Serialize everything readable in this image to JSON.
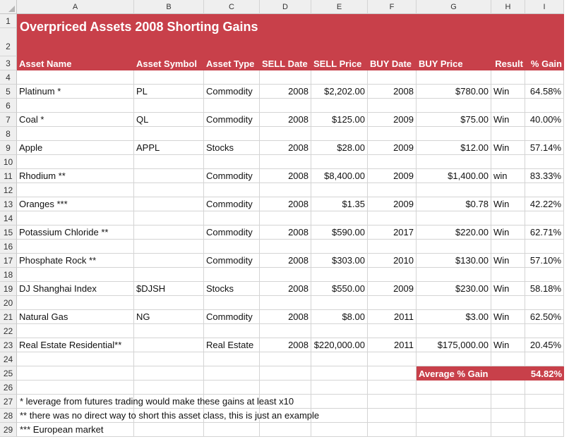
{
  "columns": [
    "A",
    "B",
    "C",
    "D",
    "E",
    "F",
    "G",
    "H",
    "I"
  ],
  "row_numbers": [
    "1",
    "2",
    "3",
    "4",
    "5",
    "6",
    "7",
    "8",
    "9",
    "10",
    "11",
    "12",
    "13",
    "14",
    "15",
    "16",
    "17",
    "18",
    "19",
    "20",
    "21",
    "22",
    "23",
    "24",
    "25",
    "26",
    "27",
    "28",
    "29"
  ],
  "title": "Overpriced Assets 2008 Shorting Gains",
  "headers": {
    "asset_name": "Asset Name",
    "asset_symbol": "Asset Symbol",
    "asset_type": "Asset Type",
    "sell_date": "SELL Date",
    "sell_price": "SELL Price",
    "buy_date": "BUY Date",
    "buy_price": "BUY Price",
    "result": "Result",
    "gain": "% Gain"
  },
  "rows": [
    {
      "name": "Platinum *",
      "symbol": "PL",
      "type": "Commodity",
      "sell_date": "2008",
      "sell_price": "$2,202.00",
      "buy_date": "2008",
      "buy_price": "$780.00",
      "result": "Win",
      "gain": "64.58%"
    },
    {
      "name": "Coal *",
      "symbol": "QL",
      "type": "Commodity",
      "sell_date": "2008",
      "sell_price": "$125.00",
      "buy_date": "2009",
      "buy_price": "$75.00",
      "result": "Win",
      "gain": "40.00%"
    },
    {
      "name": "Apple",
      "symbol": "APPL",
      "type": "Stocks",
      "sell_date": "2008",
      "sell_price": "$28.00",
      "buy_date": "2009",
      "buy_price": "$12.00",
      "result": "Win",
      "gain": "57.14%"
    },
    {
      "name": "Rhodium **",
      "symbol": "",
      "type": "Commodity",
      "sell_date": "2008",
      "sell_price": "$8,400.00",
      "buy_date": "2009",
      "buy_price": "$1,400.00",
      "result": "win",
      "gain": "83.33%"
    },
    {
      "name": "Oranges ***",
      "symbol": "",
      "type": "Commodity",
      "sell_date": "2008",
      "sell_price": "$1.35",
      "buy_date": "2009",
      "buy_price": "$0.78",
      "result": "Win",
      "gain": "42.22%"
    },
    {
      "name": "Potassium Chloride **",
      "symbol": "",
      "type": "Commodity",
      "sell_date": "2008",
      "sell_price": "$590.00",
      "buy_date": "2017",
      "buy_price": "$220.00",
      "result": "Win",
      "gain": "62.71%"
    },
    {
      "name": "Phosphate Rock **",
      "symbol": "",
      "type": "Commodity",
      "sell_date": "2008",
      "sell_price": "$303.00",
      "buy_date": "2010",
      "buy_price": "$130.00",
      "result": "Win",
      "gain": "57.10%"
    },
    {
      "name": "DJ Shanghai Index",
      "symbol": "$DJSH",
      "type": "Stocks",
      "sell_date": "2008",
      "sell_price": "$550.00",
      "buy_date": "2009",
      "buy_price": "$230.00",
      "result": "Win",
      "gain": "58.18%"
    },
    {
      "name": "Natural Gas",
      "symbol": "NG",
      "type": "Commodity",
      "sell_date": "2008",
      "sell_price": "$8.00",
      "buy_date": "2011",
      "buy_price": "$3.00",
      "result": "Win",
      "gain": "62.50%"
    },
    {
      "name": "Real Estate Residential**",
      "symbol": "",
      "type": "Real Estate",
      "sell_date": "2008",
      "sell_price": "$220,000.00",
      "buy_date": "2011",
      "buy_price": "$175,000.00",
      "result": "Win",
      "gain": "20.45%"
    }
  ],
  "average": {
    "label": "Average % Gain",
    "value": "54.82%"
  },
  "notes": [
    "* leverage from futures trading would make these gains at least x10",
    "** there was no direct way to short this asset class, this is just an example",
    "*** European market"
  ],
  "colors": {
    "banner": "#c8404a",
    "header_bg": "#efefef",
    "grid": "#d4d4d4"
  }
}
